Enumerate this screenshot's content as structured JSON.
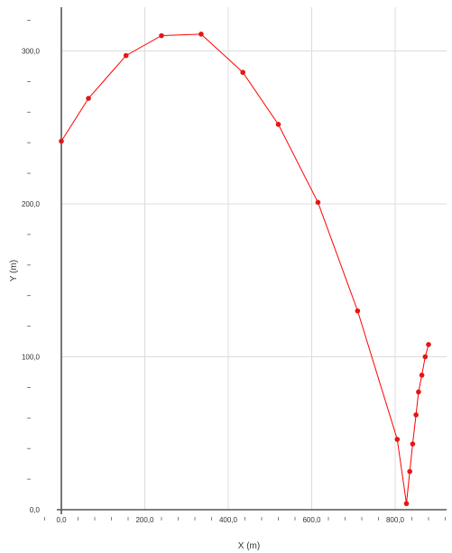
{
  "chart_data": {
    "type": "line",
    "title": "",
    "xlabel": "X (m)",
    "ylabel": "Y (m)",
    "xlim": [
      0,
      920
    ],
    "ylim": [
      0,
      335
    ],
    "grid": true,
    "legend": "none",
    "x_ticks": [
      {
        "value": 0,
        "label": "0,0"
      },
      {
        "value": 200,
        "label": "200,0"
      },
      {
        "value": 400,
        "label": "400,0"
      },
      {
        "value": 600,
        "label": "600,0"
      },
      {
        "value": 800,
        "label": "800,0"
      }
    ],
    "y_ticks": [
      {
        "value": 0,
        "label": "0,0"
      },
      {
        "value": 100,
        "label": "100,0"
      },
      {
        "value": 200,
        "label": "200,0"
      },
      {
        "value": 300,
        "label": "300,0"
      }
    ],
    "x_minor_step": 40,
    "y_minor_step": 20,
    "series": [
      {
        "x": [
          0,
          65,
          155,
          240,
          335,
          435,
          520,
          615,
          710,
          805,
          827,
          835,
          842,
          850,
          856,
          864,
          872,
          880
        ],
        "y": [
          241,
          269,
          297,
          310,
          311,
          286,
          252,
          201,
          130,
          46,
          4,
          25,
          43,
          62,
          77,
          88,
          100,
          108
        ]
      }
    ],
    "colors": {
      "line": "#ff0000",
      "marker": "#e01818",
      "grid": "#dcdcdc",
      "axis": "#555555"
    }
  }
}
